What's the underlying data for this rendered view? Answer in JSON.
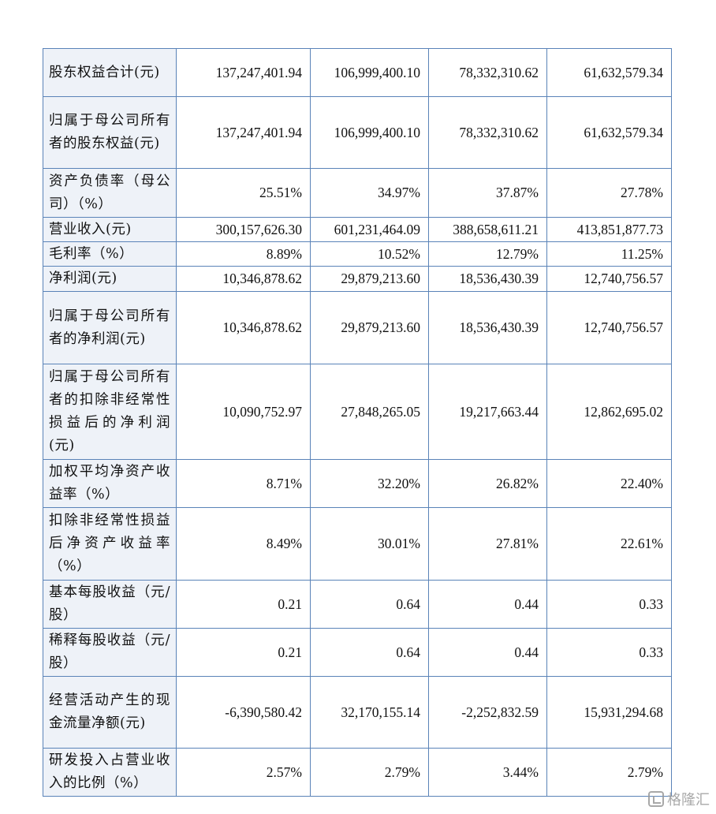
{
  "rows": [
    {
      "label": "股东权益合计(元)",
      "values": [
        "137,247,401.94",
        "106,999,400.10",
        "78,332,310.62",
        "61,632,579.34"
      ]
    },
    {
      "label": "归属于母公司所有者的股东权益(元)",
      "values": [
        "137,247,401.94",
        "106,999,400.10",
        "78,332,310.62",
        "61,632,579.34"
      ]
    },
    {
      "label": "资产负债率（母公司）（%）",
      "values": [
        "25.51%",
        "34.97%",
        "37.87%",
        "27.78%"
      ]
    },
    {
      "label": "营业收入(元)",
      "values": [
        "300,157,626.30",
        "601,231,464.09",
        "388,658,611.21",
        "413,851,877.73"
      ]
    },
    {
      "label": "毛利率（%）",
      "values": [
        "8.89%",
        "10.52%",
        "12.79%",
        "11.25%"
      ]
    },
    {
      "label": "净利润(元)",
      "values": [
        "10,346,878.62",
        "29,879,213.60",
        "18,536,430.39",
        "12,740,756.57"
      ]
    },
    {
      "label": "归属于母公司所有者的净利润(元)",
      "values": [
        "10,346,878.62",
        "29,879,213.60",
        "18,536,430.39",
        "12,740,756.57"
      ]
    },
    {
      "label": "归属于母公司所有者的扣除非经常性损益后的净利润(元)",
      "values": [
        "10,090,752.97",
        "27,848,265.05",
        "19,217,663.44",
        "12,862,695.02"
      ]
    },
    {
      "label": "加权平均净资产收益率（%）",
      "values": [
        "8.71%",
        "32.20%",
        "26.82%",
        "22.40%"
      ]
    },
    {
      "label": "扣除非经常性损益后净资产收益率（%）",
      "values": [
        "8.49%",
        "30.01%",
        "27.81%",
        "22.61%"
      ]
    },
    {
      "label": "基本每股收益（元/股）",
      "values": [
        "0.21",
        "0.64",
        "0.44",
        "0.33"
      ]
    },
    {
      "label": "稀释每股收益（元/股）",
      "values": [
        "0.21",
        "0.64",
        "0.44",
        "0.33"
      ]
    },
    {
      "label": "经营活动产生的现金流量净额(元)",
      "values": [
        "-6,390,580.42",
        "32,170,155.14",
        "-2,252,832.59",
        "15,931,294.68"
      ]
    },
    {
      "label": "研发投入占营业收入的比例（%）",
      "values": [
        "2.57%",
        "2.79%",
        "3.44%",
        "2.79%"
      ]
    }
  ],
  "watermark": {
    "text": "格隆汇",
    "icon": "gelonghui-logo-icon"
  }
}
